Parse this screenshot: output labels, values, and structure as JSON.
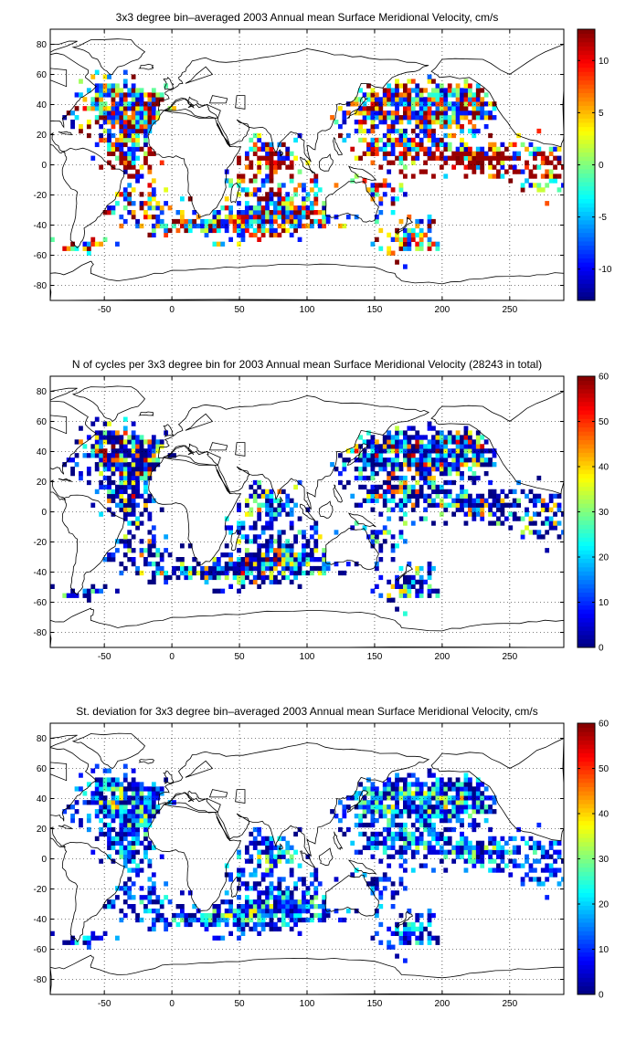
{
  "chart_data": [
    {
      "type": "heatmap",
      "title": "3x3 degree bin–averaged 2003 Annual mean Surface Meridional Velocity, cm/s",
      "xlabel": "",
      "ylabel": "",
      "xlim": [
        -90,
        290
      ],
      "ylim": [
        -90,
        90
      ],
      "xticks": [
        -50,
        0,
        50,
        100,
        150,
        200,
        250
      ],
      "yticks": [
        -80,
        -60,
        -40,
        -20,
        0,
        20,
        40,
        60,
        80
      ],
      "grid": true,
      "colormap": "jet",
      "clim": [
        -13,
        13
      ],
      "colorbar_ticks": [
        -10,
        -5,
        0,
        5,
        10
      ],
      "bin_size_deg": 3,
      "mode": "signed"
    },
    {
      "type": "heatmap",
      "title": "N of cycles per 3x3 degree bin for 2003 Annual mean Surface Meridional Velocity (28243 in total)",
      "xlabel": "",
      "ylabel": "",
      "xlim": [
        -90,
        290
      ],
      "ylim": [
        -90,
        90
      ],
      "xticks": [
        -50,
        0,
        50,
        100,
        150,
        200,
        250
      ],
      "yticks": [
        -80,
        -60,
        -40,
        -20,
        0,
        20,
        40,
        60,
        80
      ],
      "grid": true,
      "colormap": "jet",
      "clim": [
        0,
        60
      ],
      "colorbar_ticks": [
        0,
        10,
        20,
        30,
        40,
        50,
        60
      ],
      "bin_size_deg": 3,
      "mode": "count"
    },
    {
      "type": "heatmap",
      "title": "St. deviation for 3x3 degree bin–averaged 2003 Annual mean Surface Meridional Velocity, cm/s",
      "xlabel": "",
      "ylabel": "",
      "xlim": [
        -90,
        290
      ],
      "ylim": [
        -90,
        90
      ],
      "xticks": [
        -50,
        0,
        50,
        100,
        150,
        200,
        250
      ],
      "yticks": [
        -80,
        -60,
        -40,
        -20,
        0,
        20,
        40,
        60,
        80
      ],
      "grid": true,
      "colormap": "jet",
      "clim": [
        0,
        60
      ],
      "colorbar_ticks": [
        0,
        10,
        20,
        30,
        40,
        50,
        60
      ],
      "bin_size_deg": 3,
      "mode": "std"
    }
  ]
}
